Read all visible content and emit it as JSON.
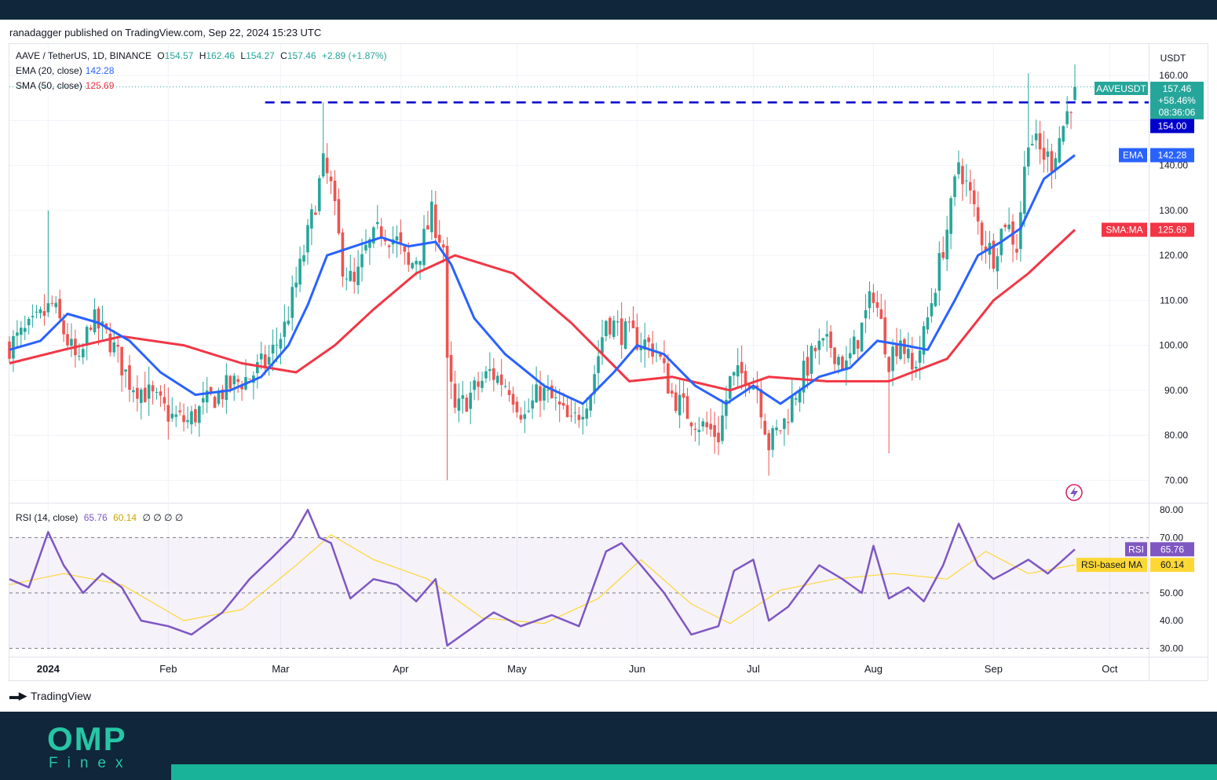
{
  "header": {
    "published": "ranadagger published on TradingView.com, Sep 22, 2024 15:23 UTC"
  },
  "legend": {
    "pair": "AAVE / TetherUS, 1D, BINANCE",
    "open_label": "O",
    "open": "154.57",
    "high_label": "H",
    "high": "162.46",
    "low_label": "L",
    "low": "154.27",
    "close_label": "C",
    "close": "157.46",
    "change": "+2.89 (+1.87%)",
    "ema_label": "EMA (20, close)",
    "ema_value": "142.28",
    "sma_label": "SMA (50, close)",
    "sma_value": "125.69",
    "rsi_label": "RSI (14, close)",
    "rsi_value": "65.76",
    "rsi_ma_value": "60.14",
    "rsi_extra": "∅ ∅ ∅ ∅"
  },
  "price_scale": {
    "currency": "USDT"
  },
  "badges": {
    "symbol": "AAVEUSDT",
    "price": "157.46",
    "change_pct": "+58.46%",
    "countdown": "08:36:06",
    "level": "154.00",
    "ema_tag": "EMA",
    "ema_value": "142.28",
    "sma_tag": "SMA:MA",
    "sma_value": "125.69",
    "rsi_tag": "RSI",
    "rsi_value": "65.76",
    "rsi_ma_tag": "RSI-based MA",
    "rsi_ma_value": "60.14"
  },
  "footer": {
    "brand": "TradingView",
    "logo_text": "OMP",
    "logo_sub": "Finex"
  },
  "colors": {
    "up": "#26a69a",
    "down": "#ef5350",
    "ema": "#2962ff",
    "sma": "#f23645",
    "rsi": "#7e57c2",
    "rsi_ma": "#fdd835",
    "level": "#0000cc"
  },
  "chart_data": {
    "type": "candlestick",
    "timeframe": "1D",
    "x_range": [
      "2023-12-22",
      "2024-09-22"
    ],
    "x_ticks": [
      {
        "date": "2024-01-01",
        "label": "2024"
      },
      {
        "date": "2024-02-01",
        "label": "Feb"
      },
      {
        "date": "2024-03-01",
        "label": "Mar"
      },
      {
        "date": "2024-04-01",
        "label": "Apr"
      },
      {
        "date": "2024-05-01",
        "label": "May"
      },
      {
        "date": "2024-06-01",
        "label": "Jun"
      },
      {
        "date": "2024-07-01",
        "label": "Jul"
      },
      {
        "date": "2024-08-01",
        "label": "Aug"
      },
      {
        "date": "2024-09-01",
        "label": "Sep"
      },
      {
        "date": "2024-10-01",
        "label": "Oct"
      }
    ],
    "price_axis": {
      "ylim": [
        65,
        167
      ],
      "ticks": [
        "70.00",
        "80.00",
        "90.00",
        "100.00",
        "110.00",
        "120.00",
        "130.00",
        "140.00",
        "150.00",
        "160.00"
      ]
    },
    "rsi_axis": {
      "ylim": [
        27,
        82
      ],
      "ticks": [
        "30.00",
        "40.00",
        "50.00",
        "60.00",
        "70.00",
        "80.00"
      ],
      "band": [
        30,
        70
      ],
      "mid": 50
    },
    "horizontal_level": {
      "value": 154,
      "start": "2024-02-26",
      "style": "dashed"
    },
    "price_path": [
      [
        "2023-12-22",
        100
      ],
      [
        "2023-12-28",
        104
      ],
      [
        "2024-01-02",
        109
      ],
      [
        "2024-01-05",
        103
      ],
      [
        "2024-01-09",
        95
      ],
      [
        "2024-01-12",
        106
      ],
      [
        "2024-01-17",
        101
      ],
      [
        "2024-01-22",
        92
      ],
      [
        "2024-01-27",
        89
      ],
      [
        "2024-02-02",
        84
      ],
      [
        "2024-02-06",
        83
      ],
      [
        "2024-02-12",
        88
      ],
      [
        "2024-02-17",
        91
      ],
      [
        "2024-02-22",
        93
      ],
      [
        "2024-02-27",
        97
      ],
      [
        "2024-03-02",
        104
      ],
      [
        "2024-03-06",
        117
      ],
      [
        "2024-03-09",
        128
      ],
      [
        "2024-03-12",
        140
      ],
      [
        "2024-03-14",
        135
      ],
      [
        "2024-03-17",
        118
      ],
      [
        "2024-03-20",
        113
      ],
      [
        "2024-03-23",
        121
      ],
      [
        "2024-03-27",
        126
      ],
      [
        "2024-03-31",
        123
      ],
      [
        "2024-04-03",
        117
      ],
      [
        "2024-04-06",
        121
      ],
      [
        "2024-04-09",
        129
      ],
      [
        "2024-04-12",
        122
      ],
      [
        "2024-04-13",
        95
      ],
      [
        "2024-04-15",
        85
      ],
      [
        "2024-04-19",
        89
      ],
      [
        "2024-04-24",
        94
      ],
      [
        "2024-04-29",
        91
      ],
      [
        "2024-05-03",
        84
      ],
      [
        "2024-05-07",
        90
      ],
      [
        "2024-05-11",
        87
      ],
      [
        "2024-05-15",
        82
      ],
      [
        "2024-05-20",
        90
      ],
      [
        "2024-05-24",
        106
      ],
      [
        "2024-05-28",
        103
      ],
      [
        "2024-06-02",
        101
      ],
      [
        "2024-06-06",
        99
      ],
      [
        "2024-06-10",
        89
      ],
      [
        "2024-06-14",
        85
      ],
      [
        "2024-06-18",
        82
      ],
      [
        "2024-06-22",
        80
      ],
      [
        "2024-06-25",
        92
      ],
      [
        "2024-06-29",
        94
      ],
      [
        "2024-07-02",
        91
      ],
      [
        "2024-07-05",
        78
      ],
      [
        "2024-07-09",
        83
      ],
      [
        "2024-07-13",
        92
      ],
      [
        "2024-07-17",
        99
      ],
      [
        "2024-07-21",
        100
      ],
      [
        "2024-07-25",
        95
      ],
      [
        "2024-07-29",
        104
      ],
      [
        "2024-08-01",
        112
      ],
      [
        "2024-08-05",
        97
      ],
      [
        "2024-08-08",
        102
      ],
      [
        "2024-08-11",
        94
      ],
      [
        "2024-08-14",
        102
      ],
      [
        "2024-08-18",
        118
      ],
      [
        "2024-08-21",
        130
      ],
      [
        "2024-08-23",
        141
      ],
      [
        "2024-08-26",
        133
      ],
      [
        "2024-08-29",
        124
      ],
      [
        "2024-09-01",
        120
      ],
      [
        "2024-09-04",
        128
      ],
      [
        "2024-09-07",
        122
      ],
      [
        "2024-09-10",
        147
      ],
      [
        "2024-09-13",
        143
      ],
      [
        "2024-09-16",
        141
      ],
      [
        "2024-09-19",
        149
      ],
      [
        "2024-09-22",
        157
      ]
    ],
    "ema_20": [
      [
        "2023-12-22",
        99
      ],
      [
        "2023-12-30",
        101
      ],
      [
        "2024-01-06",
        107
      ],
      [
        "2024-01-14",
        105
      ],
      [
        "2024-01-22",
        101
      ],
      [
        "2024-01-30",
        94
      ],
      [
        "2024-02-08",
        89
      ],
      [
        "2024-02-17",
        90
      ],
      [
        "2024-02-25",
        93
      ],
      [
        "2024-03-03",
        100
      ],
      [
        "2024-03-08",
        109
      ],
      [
        "2024-03-13",
        120
      ],
      [
        "2024-03-20",
        122
      ],
      [
        "2024-03-27",
        124
      ],
      [
        "2024-04-03",
        122
      ],
      [
        "2024-04-10",
        123
      ],
      [
        "2024-04-14",
        118
      ],
      [
        "2024-04-20",
        106
      ],
      [
        "2024-04-28",
        98
      ],
      [
        "2024-05-08",
        91
      ],
      [
        "2024-05-18",
        87
      ],
      [
        "2024-05-26",
        94
      ],
      [
        "2024-06-01",
        100
      ],
      [
        "2024-06-08",
        98
      ],
      [
        "2024-06-16",
        91
      ],
      [
        "2024-06-24",
        87
      ],
      [
        "2024-07-01",
        91
      ],
      [
        "2024-07-08",
        87
      ],
      [
        "2024-07-18",
        93
      ],
      [
        "2024-07-26",
        95
      ],
      [
        "2024-08-02",
        101
      ],
      [
        "2024-08-09",
        100
      ],
      [
        "2024-08-15",
        99
      ],
      [
        "2024-08-22",
        110
      ],
      [
        "2024-08-28",
        120
      ],
      [
        "2024-09-03",
        123
      ],
      [
        "2024-09-08",
        126
      ],
      [
        "2024-09-14",
        137
      ],
      [
        "2024-09-22",
        142.28
      ]
    ],
    "sma_50": [
      [
        "2023-12-22",
        96
      ],
      [
        "2024-01-05",
        99
      ],
      [
        "2024-01-20",
        102
      ],
      [
        "2024-02-05",
        100
      ],
      [
        "2024-02-20",
        96
      ],
      [
        "2024-03-05",
        94
      ],
      [
        "2024-03-15",
        100
      ],
      [
        "2024-03-25",
        108
      ],
      [
        "2024-04-05",
        116
      ],
      [
        "2024-04-15",
        120
      ],
      [
        "2024-04-30",
        116
      ],
      [
        "2024-05-15",
        105
      ],
      [
        "2024-05-30",
        92
      ],
      [
        "2024-06-10",
        93
      ],
      [
        "2024-06-25",
        90
      ],
      [
        "2024-07-05",
        93
      ],
      [
        "2024-07-20",
        92
      ],
      [
        "2024-08-05",
        92
      ],
      [
        "2024-08-20",
        97
      ],
      [
        "2024-09-01",
        110
      ],
      [
        "2024-09-10",
        116
      ],
      [
        "2024-09-22",
        125.69
      ]
    ],
    "rsi_14": [
      [
        "2023-12-22",
        55
      ],
      [
        "2023-12-27",
        52
      ],
      [
        "2024-01-01",
        72
      ],
      [
        "2024-01-05",
        60
      ],
      [
        "2024-01-10",
        50
      ],
      [
        "2024-01-15",
        57
      ],
      [
        "2024-01-20",
        52
      ],
      [
        "2024-01-25",
        40
      ],
      [
        "2024-02-01",
        38
      ],
      [
        "2024-02-07",
        35
      ],
      [
        "2024-02-15",
        43
      ],
      [
        "2024-02-22",
        55
      ],
      [
        "2024-02-28",
        63
      ],
      [
        "2024-03-04",
        70
      ],
      [
        "2024-03-08",
        80
      ],
      [
        "2024-03-11",
        70
      ],
      [
        "2024-03-14",
        68
      ],
      [
        "2024-03-19",
        48
      ],
      [
        "2024-03-25",
        55
      ],
      [
        "2024-03-31",
        53
      ],
      [
        "2024-04-05",
        47
      ],
      [
        "2024-04-10",
        55
      ],
      [
        "2024-04-13",
        31
      ],
      [
        "2024-04-18",
        36
      ],
      [
        "2024-04-25",
        43
      ],
      [
        "2024-05-02",
        38
      ],
      [
        "2024-05-10",
        42
      ],
      [
        "2024-05-17",
        38
      ],
      [
        "2024-05-24",
        65
      ],
      [
        "2024-05-28",
        68
      ],
      [
        "2024-06-02",
        60
      ],
      [
        "2024-06-08",
        50
      ],
      [
        "2024-06-15",
        35
      ],
      [
        "2024-06-22",
        38
      ],
      [
        "2024-06-26",
        58
      ],
      [
        "2024-07-01",
        62
      ],
      [
        "2024-07-05",
        40
      ],
      [
        "2024-07-10",
        45
      ],
      [
        "2024-07-18",
        60
      ],
      [
        "2024-07-24",
        55
      ],
      [
        "2024-07-29",
        50
      ],
      [
        "2024-08-01",
        67
      ],
      [
        "2024-08-05",
        48
      ],
      [
        "2024-08-10",
        52
      ],
      [
        "2024-08-14",
        47
      ],
      [
        "2024-08-19",
        60
      ],
      [
        "2024-08-23",
        75
      ],
      [
        "2024-08-28",
        60
      ],
      [
        "2024-09-01",
        55
      ],
      [
        "2024-09-05",
        58
      ],
      [
        "2024-09-10",
        62
      ],
      [
        "2024-09-15",
        57
      ],
      [
        "2024-09-22",
        65.76
      ]
    ],
    "rsi_ma": [
      [
        "2023-12-22",
        53
      ],
      [
        "2024-01-05",
        57
      ],
      [
        "2024-01-20",
        53
      ],
      [
        "2024-02-05",
        40
      ],
      [
        "2024-02-20",
        44
      ],
      [
        "2024-03-05",
        60
      ],
      [
        "2024-03-14",
        71
      ],
      [
        "2024-03-25",
        62
      ],
      [
        "2024-04-08",
        55
      ],
      [
        "2024-04-22",
        41
      ],
      [
        "2024-05-08",
        39
      ],
      [
        "2024-05-22",
        48
      ],
      [
        "2024-06-02",
        62
      ],
      [
        "2024-06-15",
        46
      ],
      [
        "2024-06-25",
        39
      ],
      [
        "2024-07-08",
        51
      ],
      [
        "2024-07-22",
        55
      ],
      [
        "2024-08-06",
        57
      ],
      [
        "2024-08-20",
        55
      ],
      [
        "2024-08-30",
        65
      ],
      [
        "2024-09-10",
        57
      ],
      [
        "2024-09-22",
        60.14
      ]
    ]
  }
}
